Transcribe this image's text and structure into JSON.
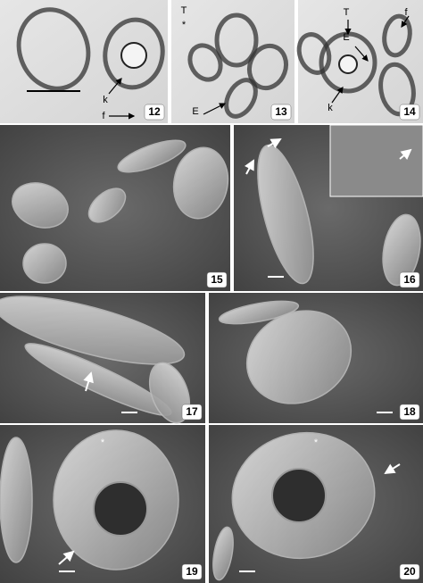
{
  "panels": [
    {
      "number": "12",
      "labels": [
        "k",
        "f"
      ]
    },
    {
      "number": "13",
      "labels": [
        "T",
        "*",
        "E"
      ]
    },
    {
      "number": "14",
      "labels": [
        "T",
        "E",
        "k",
        "f"
      ]
    },
    {
      "number": "15",
      "labels": []
    },
    {
      "number": "16",
      "labels": []
    },
    {
      "number": "17",
      "labels": []
    },
    {
      "number": "18",
      "labels": []
    },
    {
      "number": "19",
      "labels": [
        "*"
      ]
    },
    {
      "number": "20",
      "labels": [
        "*"
      ]
    }
  ]
}
